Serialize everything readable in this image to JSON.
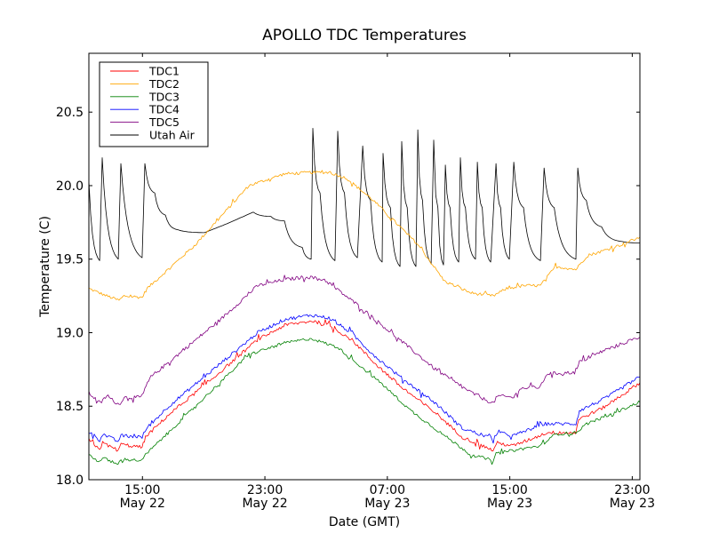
{
  "chart_data": {
    "type": "line",
    "title": "APOLLO TDC Temperatures",
    "xlabel": "Date (GMT)",
    "ylabel": "Temperature (C)",
    "x_units": "hours since 00:00 May 22 (GMT)",
    "xlim": [
      11.5,
      47.5
    ],
    "ylim": [
      18.0,
      20.9
    ],
    "grid": false,
    "legend_position": "top-left",
    "yticks": [
      18.0,
      18.5,
      19.0,
      19.5,
      20.0,
      20.5
    ],
    "ytick_labels": [
      "18.0",
      "18.5",
      "19.0",
      "19.5",
      "20.0",
      "20.5"
    ],
    "xticks": [
      {
        "value": 15,
        "time": "15:00",
        "date": "May 22"
      },
      {
        "value": 23,
        "time": "23:00",
        "date": "May 22"
      },
      {
        "value": 31,
        "time": "07:00",
        "date": "May 23"
      },
      {
        "value": 39,
        "time": "15:00",
        "date": "May 23"
      },
      {
        "value": 47,
        "time": "23:00",
        "date": "May 23"
      }
    ],
    "series": [
      {
        "name": "TDC1",
        "color": "#ff0000",
        "x": [
          11.5,
          12.2,
          12.4,
          13.4,
          13.6,
          14.98,
          15.2,
          16.7,
          19.6,
          22.5,
          24.3,
          26.1,
          27.2,
          28.7,
          30.1,
          31.9,
          34.2,
          35.9,
          37.9,
          38.2,
          39.2,
          41.2,
          41.4,
          43.3,
          43.5,
          45.1,
          47.5
        ],
        "y": [
          18.27,
          18.21,
          18.25,
          18.2,
          18.24,
          18.22,
          18.29,
          18.44,
          18.69,
          18.95,
          19.05,
          19.08,
          19.05,
          18.95,
          18.8,
          18.63,
          18.45,
          18.29,
          18.2,
          18.25,
          18.23,
          18.31,
          18.32,
          18.32,
          18.41,
          18.49,
          18.66
        ],
        "noise": 0.012
      },
      {
        "name": "TDC2",
        "color": "#ffa500",
        "x": [
          11.5,
          12.66,
          13.47,
          13.8,
          14.98,
          15.3,
          18.47,
          21.95,
          24.28,
          26.02,
          27.18,
          28.34,
          30.08,
          32.99,
          34.73,
          36.47,
          37.92,
          38.79,
          39.95,
          41.0,
          41.99,
          43.32,
          44.02,
          46.34,
          47.5
        ],
        "y": [
          19.3,
          19.25,
          19.22,
          19.25,
          19.24,
          19.3,
          19.6,
          20.0,
          20.08,
          20.09,
          20.09,
          20.05,
          19.9,
          19.6,
          19.35,
          19.27,
          19.25,
          19.3,
          19.32,
          19.32,
          19.45,
          19.43,
          19.52,
          19.6,
          19.65
        ],
        "noise": 0.01
      },
      {
        "name": "TDC3",
        "color": "#008000",
        "x": [
          11.5,
          12.2,
          12.4,
          13.4,
          13.6,
          14.98,
          15.2,
          18.47,
          21.95,
          24.28,
          26.02,
          27.76,
          28.92,
          30.66,
          32.41,
          34.73,
          36.47,
          37.92,
          38.2,
          39.26,
          41.0,
          41.99,
          43.32,
          44.02,
          45.76,
          47.5
        ],
        "y": [
          18.17,
          18.12,
          18.15,
          18.1,
          18.14,
          18.13,
          18.17,
          18.5,
          18.85,
          18.93,
          18.96,
          18.9,
          18.8,
          18.65,
          18.48,
          18.3,
          18.17,
          18.13,
          18.18,
          18.2,
          18.23,
          18.31,
          18.32,
          18.38,
          18.45,
          18.53
        ],
        "noise": 0.01
      },
      {
        "name": "TDC4",
        "color": "#0000ff",
        "x": [
          11.5,
          12.2,
          12.4,
          13.4,
          13.6,
          14.98,
          15.27,
          16.72,
          19.63,
          22.53,
          24.28,
          26.02,
          27.18,
          28.63,
          30.08,
          31.83,
          34.15,
          35.89,
          37.92,
          38.2,
          39.26,
          41.24,
          43.32,
          43.55,
          45.18,
          47.5
        ],
        "y": [
          18.33,
          18.27,
          18.31,
          18.26,
          18.3,
          18.29,
          18.35,
          18.5,
          18.75,
          19.0,
          19.09,
          19.12,
          19.1,
          19.0,
          18.85,
          18.7,
          18.52,
          18.35,
          18.28,
          18.32,
          18.3,
          18.38,
          18.38,
          18.47,
          18.55,
          18.7
        ],
        "noise": 0.012
      },
      {
        "name": "TDC5",
        "color": "#800080",
        "x": [
          11.5,
          12.25,
          12.66,
          13.47,
          13.8,
          14.98,
          15.16,
          15.56,
          17.31,
          20.21,
          22.53,
          24.28,
          25.73,
          26.89,
          27.64,
          28.92,
          30.66,
          32.41,
          34.15,
          35.89,
          37.05,
          37.92,
          38.2,
          39.26,
          39.66,
          41.0,
          41.41,
          43.32,
          43.55,
          45.18,
          47.5
        ],
        "y": [
          18.59,
          18.52,
          18.57,
          18.51,
          18.56,
          18.56,
          18.62,
          18.7,
          18.85,
          19.1,
          19.32,
          19.36,
          19.38,
          19.36,
          19.3,
          19.2,
          19.05,
          18.9,
          18.75,
          18.63,
          18.56,
          18.52,
          18.57,
          18.56,
          18.62,
          18.63,
          18.72,
          18.73,
          18.8,
          18.88,
          18.97
        ],
        "noise": 0.012
      },
      {
        "name": "Utah Air",
        "color": "#000000",
        "x": [
          11.5,
          12.2,
          12.37,
          13.42,
          13.59,
          14.98,
          15.16,
          15.8,
          16.5,
          17.31,
          19.05,
          20.5,
          22.24,
          23.4,
          24.28,
          25.44,
          26.02,
          26.13,
          26.6,
          27.58,
          27.76,
          28.2,
          29.04,
          29.39,
          29.9,
          30.66,
          30.72,
          31.2,
          31.83,
          31.94,
          32.3,
          32.87,
          32.99,
          33.3,
          33.86,
          34.03,
          34.3,
          34.67,
          34.79,
          35.1,
          35.66,
          35.77,
          36.1,
          36.76,
          36.88,
          37.2,
          37.75,
          38.1,
          38.4,
          38.97,
          39.26,
          39.9,
          41.0,
          41.24,
          41.9,
          43.32,
          43.44,
          44.0,
          45.0,
          46.34,
          47.5
        ],
        "y": [
          20.03,
          19.49,
          20.19,
          19.5,
          20.15,
          19.51,
          20.15,
          19.95,
          19.8,
          19.7,
          19.68,
          19.74,
          19.82,
          19.79,
          19.76,
          19.58,
          19.5,
          20.39,
          19.95,
          19.49,
          20.37,
          19.95,
          19.51,
          20.27,
          19.9,
          19.48,
          20.22,
          19.85,
          19.45,
          20.3,
          19.85,
          19.45,
          20.38,
          19.9,
          19.47,
          20.31,
          19.85,
          19.46,
          20.14,
          19.85,
          19.48,
          20.19,
          19.85,
          19.5,
          20.16,
          19.85,
          19.48,
          20.15,
          19.85,
          19.5,
          20.16,
          19.85,
          19.49,
          20.12,
          19.85,
          19.5,
          20.12,
          19.9,
          19.72,
          19.62,
          19.61
        ],
        "noise": 0.0
      }
    ]
  }
}
